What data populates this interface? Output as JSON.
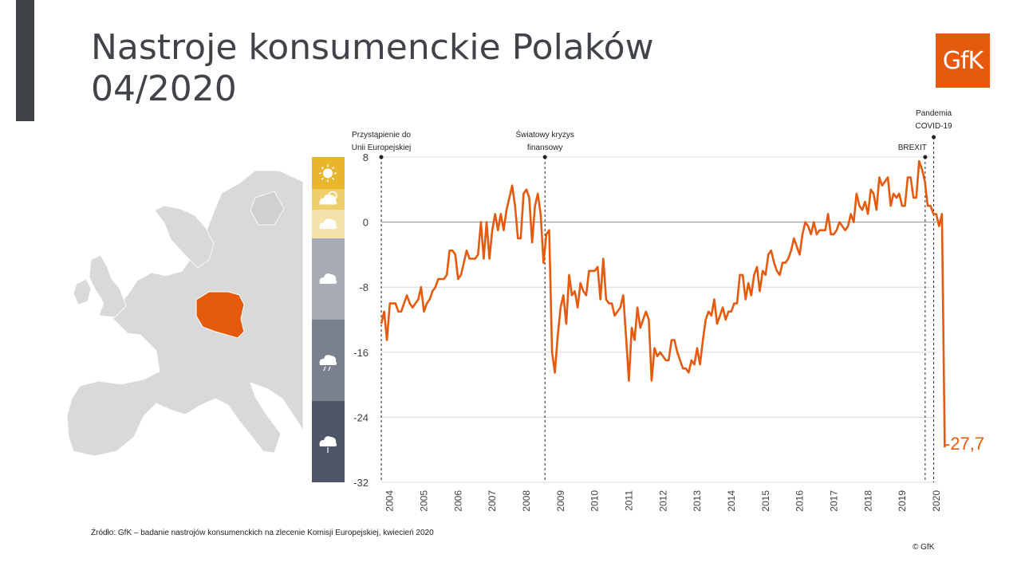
{
  "title_line1": "Nastroje konsumenckie Polaków",
  "title_line2": "04/2020",
  "logo_text": "GfK",
  "source": "Źródło: GfK – badanie nastrojów konsumenckich na zlecenie Komisji Europejskiej, kwiecień 2020",
  "copyright": "© GfK",
  "colors": {
    "accent": "#e55a0d",
    "sidebar_dark": "#3f4246",
    "weather": [
      "#e8b52d",
      "#edcf6e",
      "#f3e2a9",
      "#a7abb5",
      "#7b808f",
      "#4d5567"
    ]
  },
  "weather_icons": [
    "sun-icon",
    "sun-cloud-icon",
    "cloud-icon",
    "cloud-icon",
    "storm-cloud-icon",
    "rain-cloud-icon"
  ],
  "chart_data": {
    "type": "line",
    "x_start": 2004.0,
    "x_step": 0.0833,
    "xlim": [
      2004.0,
      2020.25
    ],
    "ylim": [
      -32,
      8
    ],
    "yticks": [
      "8",
      "0",
      "-8",
      "-16",
      "-24",
      "-32"
    ],
    "yticks_values": [
      8,
      0,
      -8,
      -16,
      -24,
      -32
    ],
    "xticks": [
      "2004",
      "2005",
      "2006",
      "2007",
      "2008",
      "2009",
      "2010",
      "2011",
      "2012",
      "2013",
      "2014",
      "2015",
      "2016",
      "2017",
      "2018",
      "2019",
      "2020"
    ],
    "grid": true,
    "series": [
      {
        "color": "#e55a0d",
        "values": [
          -12.5,
          -11,
          -14.5,
          -10,
          -10,
          -10,
          -11,
          -11,
          -10,
          -9,
          -10,
          -10.5,
          -10,
          -9.5,
          -8,
          -11,
          -10,
          -9.5,
          -8.5,
          -8,
          -7,
          -7,
          -7,
          -6.5,
          -3.5,
          -3.5,
          -4,
          -7,
          -6.5,
          -5,
          -3.5,
          -4.5,
          -4.5,
          -4.5,
          -4,
          0,
          -4.5,
          0,
          -4.5,
          -1,
          1,
          -1,
          1,
          -1,
          1.5,
          3,
          4.5,
          2,
          -2,
          -2,
          3.5,
          4,
          3,
          -2.5,
          2,
          3.5,
          1,
          -5,
          -1.5,
          -1,
          -16,
          -18.5,
          -14,
          -10.5,
          -9,
          -12.5,
          -6.5,
          -9,
          -8.5,
          -10.5,
          -7.5,
          -8.5,
          -9,
          -6,
          -6,
          -6,
          -5.5,
          -9.5,
          -4.5,
          -9.5,
          -10,
          -10,
          -11.5,
          -11,
          -10.5,
          -9,
          -14,
          -19.5,
          -13,
          -14.5,
          -10.5,
          -13,
          -12,
          -11,
          -12,
          -19.5,
          -15.5,
          -16.5,
          -16,
          -16.5,
          -17,
          -17,
          -14.5,
          -14.5,
          -16,
          -17,
          -18,
          -18,
          -18.5,
          -17,
          -17.5,
          -15.5,
          -17.5,
          -14.5,
          -12,
          -11,
          -11.5,
          -9.5,
          -12.5,
          -11.5,
          -10.5,
          -12,
          -11,
          -11,
          -10,
          -10,
          -6.5,
          -6.5,
          -9.5,
          -7.5,
          -9,
          -6.5,
          -5.5,
          -8.5,
          -6,
          -6.5,
          -4,
          -3.5,
          -5,
          -6,
          -6.5,
          -5,
          -5,
          -4.5,
          -3.5,
          -2,
          -3,
          -4,
          -1.5,
          0,
          -0.5,
          -1.5,
          0,
          -1.5,
          -1,
          -1,
          -1,
          1,
          -1.5,
          -1.5,
          -1,
          0,
          -0.5,
          -1,
          -0.5,
          1,
          0,
          3.5,
          2,
          1.5,
          2.5,
          1,
          4,
          3.5,
          1.5,
          5.5,
          4.5,
          5,
          5.5,
          2,
          3.5,
          3,
          3.5,
          2,
          2,
          5.5,
          5.5,
          3,
          3,
          7.5,
          6.5,
          5,
          2,
          2,
          1,
          1,
          -0.5,
          1,
          -27.7
        ]
      }
    ],
    "annotations": [
      {
        "x": 2004.0,
        "label_lines": [
          "Przystąpienie do",
          "Unii Europejskiej"
        ]
      },
      {
        "x": 2008.79,
        "label_lines": [
          "Światowy kryzys",
          "finansowy"
        ]
      },
      {
        "x": 2019.92,
        "label_lines": [
          "BREXIT"
        ]
      },
      {
        "x": 2020.17,
        "label_lines": [
          "Pandemia",
          "COVID-19"
        ]
      }
    ],
    "last_value_label": "-27,7"
  }
}
